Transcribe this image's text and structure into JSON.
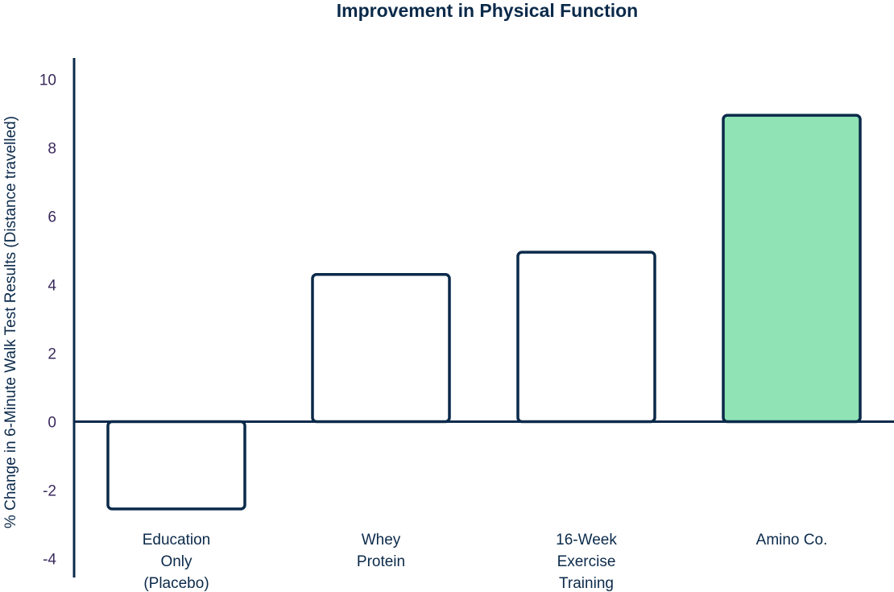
{
  "chart_data": {
    "type": "bar",
    "title": "Improvement in Physical Function",
    "ylabel": "% Change in 6-Minute Walk Test Results (Distance travelled)",
    "xlabel": "",
    "ylim": [
      -4.4,
      10.6
    ],
    "yticks": [
      10,
      8,
      6,
      4,
      2,
      0,
      -2,
      -4
    ],
    "ytick_labels": [
      "10",
      "8",
      "6",
      "4",
      "2",
      "0",
      "-2",
      "-4"
    ],
    "grid": false,
    "categories": [
      [
        "Education",
        "Only",
        "(Placebo)"
      ],
      [
        "Whey",
        "Protein"
      ],
      [
        "16-Week",
        "Exercise",
        "Training"
      ],
      [
        "Amino Co."
      ]
    ],
    "values": [
      -2.55,
      4.3,
      4.95,
      8.95
    ],
    "bar_fill_colors": [
      "#ffffff",
      "#ffffff",
      "#ffffff",
      "#8fe3b4"
    ],
    "axis_color": "#0b2a4a"
  }
}
